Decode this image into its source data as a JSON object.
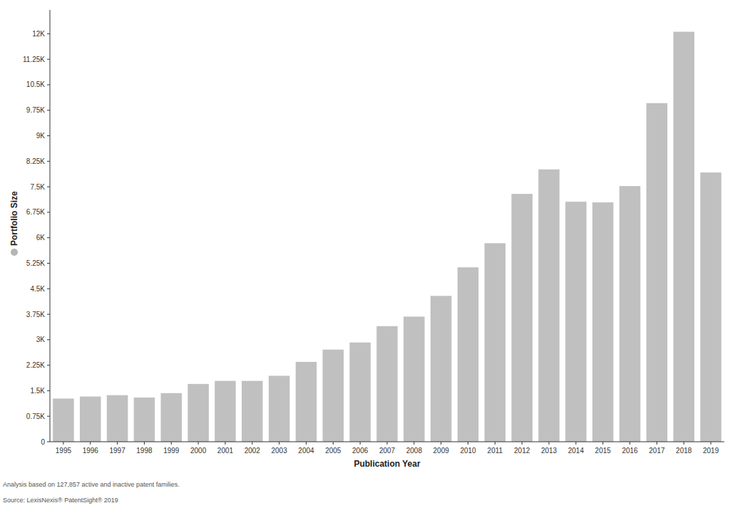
{
  "chart_data": {
    "type": "bar",
    "x_label": "Publication Year",
    "y_label": "Portfolio Size",
    "annotations": [
      "Analysis based on 127,857 active and inactive patent families.",
      "Source: LexisNexis® PatentSight® 2019"
    ],
    "categories": [
      "1995",
      "1996",
      "1997",
      "1998",
      "1999",
      "2000",
      "2001",
      "2002",
      "2003",
      "2004",
      "2005",
      "2006",
      "2007",
      "2008",
      "2009",
      "2010",
      "2011",
      "2012",
      "2013",
      "2014",
      "2015",
      "2016",
      "2017",
      "2018",
      "2019"
    ],
    "values": [
      1270,
      1330,
      1370,
      1300,
      1430,
      1700,
      1790,
      1790,
      1940,
      2350,
      2710,
      2920,
      3400,
      3680,
      4290,
      5130,
      5840,
      7290,
      8010,
      7060,
      7040,
      7520,
      9960,
      12060,
      7920
    ],
    "color": "#c0c0c0",
    "ylim": [
      0,
      12700
    ],
    "yticks": [
      0,
      {
        "value": 750,
        "label": "0.75K"
      },
      {
        "value": 1500,
        "label": "1.5K"
      },
      {
        "value": 2250,
        "label": "2.25K"
      },
      {
        "value": 3000,
        "label": "3K"
      },
      {
        "value": 3750,
        "label": "3.75K"
      },
      {
        "value": 4500,
        "label": "4.5K"
      },
      {
        "value": 5250,
        "label": "5.25K"
      },
      {
        "value": 6000,
        "label": "6K"
      },
      {
        "value": 6750,
        "label": "6.75K"
      },
      {
        "value": 7500,
        "label": "7.5K"
      },
      {
        "value": 8250,
        "label": "8.25K"
      },
      {
        "value": 9000,
        "label": "9K"
      },
      {
        "value": 9750,
        "label": "9.75K"
      },
      {
        "value": 10500,
        "label": "10.5K"
      },
      {
        "value": 11250,
        "label": "11.25K"
      },
      {
        "value": 12000,
        "label": "12K"
      }
    ],
    "grid": false
  }
}
